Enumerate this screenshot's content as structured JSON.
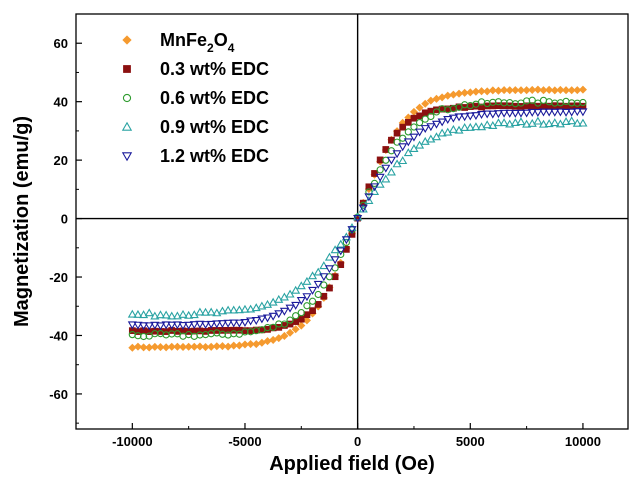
{
  "chart_data": {
    "type": "scatter",
    "xlabel": "Applied field (Oe)",
    "ylabel": "Magnetization (emu/g)",
    "xlim": [
      -12500,
      12000
    ],
    "ylim": [
      -72,
      70
    ],
    "xticks": [
      -10000,
      -5000,
      0,
      5000,
      10000
    ],
    "yticks": [
      -60,
      -40,
      -20,
      0,
      20,
      40,
      60
    ],
    "grid": false,
    "legend_position": "top-left",
    "series": [
      {
        "name": "MnFe2O4",
        "label_main": "MnFe",
        "label_sub1": "2",
        "label_mid": "O",
        "label_sub2": "4",
        "marker": "diamond",
        "color": "#f59a2f",
        "filled": true,
        "ms": 44.0,
        "hc": 2100,
        "x": [
          -10000,
          0,
          10000
        ],
        "y": [
          -43.5,
          0,
          43.5
        ]
      },
      {
        "name": "0.3 wt% EDC",
        "label": "0.3 wt% EDC",
        "marker": "square",
        "color": "#8b1010",
        "filled": true,
        "ms": 38.5,
        "hc": 1750,
        "x": [
          -10000,
          0,
          10000
        ],
        "y": [
          -40,
          0,
          38
        ]
      },
      {
        "name": "0.6 wt% EDC",
        "label": "0.6 wt% EDC",
        "marker": "circle",
        "color": "#2e9b2e",
        "filled": false,
        "ms": 40.0,
        "hc": 2300,
        "x": [
          -10000,
          0,
          10000
        ],
        "y": [
          -39,
          0,
          39
        ]
      },
      {
        "name": "0.9 wt% EDC",
        "label": "0.9 wt% EDC",
        "marker": "triangle-up",
        "color": "#2aa3a3",
        "filled": false,
        "ms": 33.0,
        "hc": 2800,
        "x": [
          -10000,
          0,
          10000
        ],
        "y": [
          -31,
          0,
          30
        ]
      },
      {
        "name": "1.2 wt% EDC",
        "label": "1.2 wt% EDC",
        "marker": "triangle-down",
        "color": "#1a1a9b",
        "filled": false,
        "ms": 36.5,
        "hc": 2450,
        "x": [
          -10000,
          0,
          10000
        ],
        "y": [
          -36,
          0,
          34
        ]
      }
    ]
  }
}
